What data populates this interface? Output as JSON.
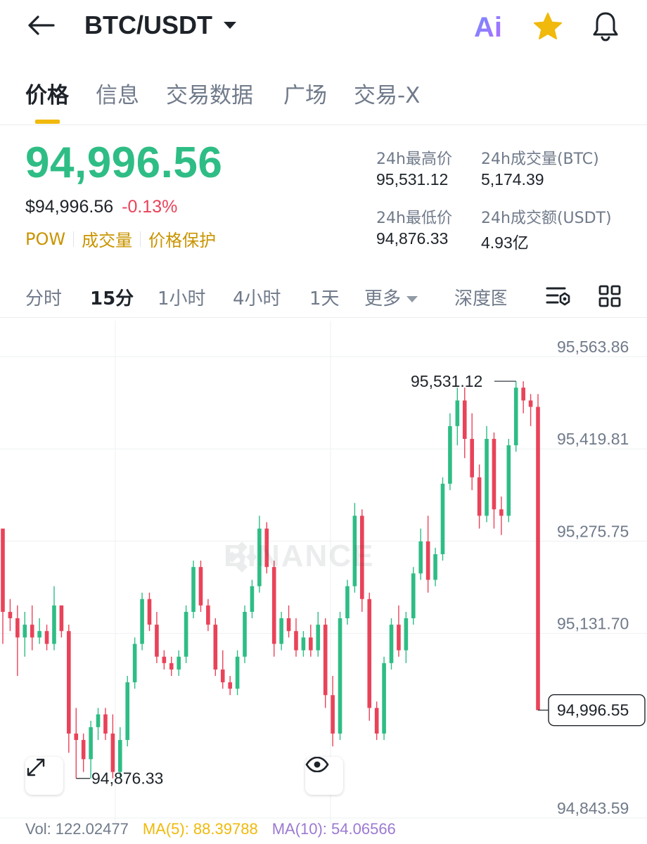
{
  "header": {
    "pair": "BTC/USDT",
    "icons": [
      "back-arrow-icon",
      "caret-down-icon",
      "ai-icon",
      "star-icon",
      "bell-icon"
    ],
    "ai_label": "Ai",
    "colors": {
      "star": "#f0b90b",
      "ai_gradient_start": "#6f8cff",
      "ai_gradient_end": "#b46cff"
    }
  },
  "tabs": [
    {
      "label": "价格",
      "active": true
    },
    {
      "label": "信息",
      "active": false
    },
    {
      "label": "交易数据",
      "active": false
    },
    {
      "label": "广场",
      "active": false
    },
    {
      "label": "交易-X",
      "active": false
    }
  ],
  "price": {
    "last": "94,996.56",
    "fiat": "$94,996.56",
    "change": "-0.13%",
    "tags": [
      "POW",
      "成交量",
      "价格保护"
    ],
    "colors": {
      "up": "#2ebd85",
      "down": "#e94359",
      "tag": "#c99400"
    }
  },
  "stats": {
    "high_label": "24h最高价",
    "high_value": "95,531.12",
    "vol_btc_label": "24h成交量(BTC)",
    "vol_btc_value": "5,174.39",
    "low_label": "24h最低价",
    "low_value": "94,876.33",
    "vol_usdt_label": "24h成交额(USDT)",
    "vol_usdt_value": "4.93亿"
  },
  "intervals": {
    "items": [
      {
        "label": "分时",
        "active": false
      },
      {
        "label": "15分",
        "active": true
      },
      {
        "label": "1小时",
        "active": false
      },
      {
        "label": "4小时",
        "active": false
      },
      {
        "label": "1天",
        "active": false
      }
    ],
    "more_label": "更多",
    "depth_label": "深度图",
    "tool_icons": [
      "indicator-settings-icon",
      "grid-layout-icon"
    ]
  },
  "chart_data": {
    "type": "candlestick",
    "interval": "15分",
    "y_ticks": [
      "95,563.86",
      "95,419.81",
      "95,275.75",
      "95,131.70",
      "94,996.55",
      "94,843.59"
    ],
    "ylim": [
      94843.59,
      95563.86
    ],
    "high_marker": "95,531.12",
    "low_marker": "94,876.33",
    "last_price_label": "94,996.55",
    "watermark": "BINANCE",
    "colors": {
      "up": "#2ebd85",
      "down": "#e94359"
    },
    "candles": [
      [
        95280,
        95280,
        95100,
        95150
      ],
      [
        95150,
        95170,
        95120,
        95140
      ],
      [
        95140,
        95160,
        95050,
        95110
      ],
      [
        95110,
        95150,
        95080,
        95130
      ],
      [
        95130,
        95160,
        95090,
        95110
      ],
      [
        95110,
        95140,
        95100,
        95120
      ],
      [
        95120,
        95130,
        95090,
        95100
      ],
      [
        95100,
        95190,
        95090,
        95160
      ],
      [
        95160,
        95160,
        95110,
        95120
      ],
      [
        95120,
        95130,
        94930,
        94960
      ],
      [
        94960,
        95000,
        94890,
        94950
      ],
      [
        94950,
        94960,
        94900,
        94920
      ],
      [
        94920,
        94980,
        94890,
        94970
      ],
      [
        94970,
        95000,
        94950,
        94990
      ],
      [
        94990,
        95000,
        94950,
        94960
      ],
      [
        94960,
        94990,
        94890,
        94900
      ],
      [
        94900,
        94970,
        94890,
        94950
      ],
      [
        94950,
        95050,
        94940,
        95040
      ],
      [
        95040,
        95110,
        95030,
        95100
      ],
      [
        95100,
        95180,
        95090,
        95170
      ],
      [
        95170,
        95180,
        95120,
        95130
      ],
      [
        95130,
        95150,
        95070,
        95080
      ],
      [
        95080,
        95090,
        95060,
        95070
      ],
      [
        95070,
        95080,
        95050,
        95060
      ],
      [
        95060,
        95090,
        95050,
        95080
      ],
      [
        95080,
        95160,
        95070,
        95150
      ],
      [
        95150,
        95230,
        95140,
        95220
      ],
      [
        95220,
        95230,
        95150,
        95160
      ],
      [
        95160,
        95170,
        95120,
        95130
      ],
      [
        95130,
        95140,
        95050,
        95060
      ],
      [
        95060,
        95090,
        95030,
        95040
      ],
      [
        95040,
        95050,
        95020,
        95030
      ],
      [
        95030,
        95090,
        95020,
        95080
      ],
      [
        95080,
        95160,
        95070,
        95150
      ],
      [
        95150,
        95200,
        95140,
        95190
      ],
      [
        95190,
        95300,
        95180,
        95280
      ],
      [
        95280,
        95290,
        95210,
        95220
      ],
      [
        95220,
        95230,
        95080,
        95100
      ],
      [
        95100,
        95150,
        95090,
        95140
      ],
      [
        95140,
        95160,
        95110,
        95120
      ],
      [
        95120,
        95140,
        95080,
        95090
      ],
      [
        95090,
        95120,
        95080,
        95110
      ],
      [
        95110,
        95130,
        95080,
        95090
      ],
      [
        95090,
        95150,
        95080,
        95130
      ],
      [
        95130,
        95140,
        95000,
        95020
      ],
      [
        95020,
        95050,
        94940,
        94960
      ],
      [
        94960,
        95150,
        94950,
        95140
      ],
      [
        95140,
        95200,
        95130,
        95190
      ],
      [
        95190,
        95320,
        95180,
        95300
      ],
      [
        95300,
        95310,
        95150,
        95170
      ],
      [
        95170,
        95180,
        94980,
        95000
      ],
      [
        95000,
        95010,
        94950,
        94960
      ],
      [
        94960,
        95080,
        94950,
        95070
      ],
      [
        95070,
        95140,
        95060,
        95130
      ],
      [
        95130,
        95160,
        95080,
        95090
      ],
      [
        95090,
        95150,
        95070,
        95140
      ],
      [
        95140,
        95220,
        95130,
        95210
      ],
      [
        95210,
        95280,
        95200,
        95260
      ],
      [
        95260,
        95300,
        95180,
        95200
      ],
      [
        95200,
        95250,
        95190,
        95240
      ],
      [
        95240,
        95360,
        95230,
        95350
      ],
      [
        95350,
        95460,
        95340,
        95440
      ],
      [
        95440,
        95500,
        95410,
        95480
      ],
      [
        95480,
        95500,
        95390,
        95420
      ],
      [
        95420,
        95460,
        95340,
        95360
      ],
      [
        95360,
        95380,
        95280,
        95300
      ],
      [
        95300,
        95440,
        95290,
        95420
      ],
      [
        95420,
        95430,
        95280,
        95310
      ],
      [
        95310,
        95330,
        95270,
        95300
      ],
      [
        95300,
        95420,
        95290,
        95410
      ],
      [
        95410,
        95510,
        95400,
        95500
      ],
      [
        95500,
        95510,
        95460,
        95480
      ],
      [
        95480,
        95490,
        95440,
        95470
      ],
      [
        95470,
        95490,
        94996.55,
        94996.55
      ]
    ]
  },
  "indicators": {
    "vol": "Vol: 122.02477",
    "ma5": "MA(5): 88.39788",
    "ma10": "MA(10): 54.06566"
  }
}
